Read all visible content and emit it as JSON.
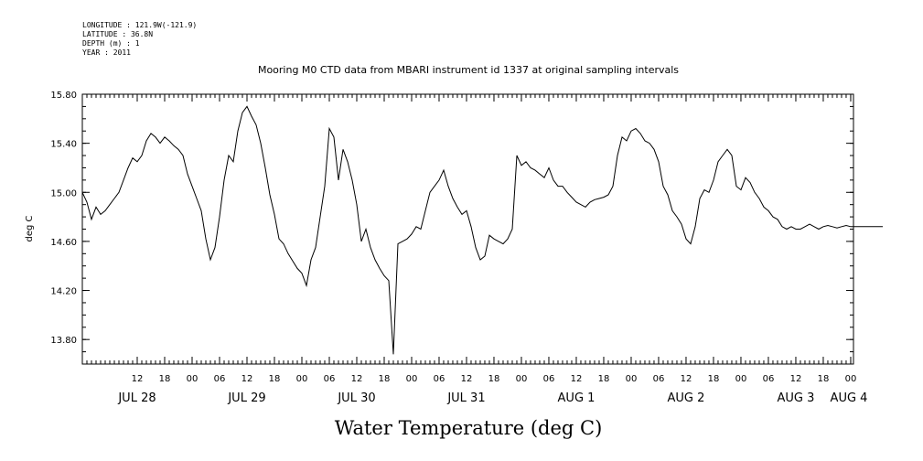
{
  "header": {
    "longitude": "LONGITUDE : 121.9W(-121.9)",
    "latitude": "LATITUDE : 36.8N",
    "depth": "DEPTH (m) : 1",
    "year": "YEAR : 2011"
  },
  "chart_data": {
    "type": "line",
    "title": "Mooring M0 CTD data from MBARI instrument id 1337 at original sampling intervals",
    "xlabel": "Water Temperature (deg C)",
    "ylabel": "deg C",
    "ylim": [
      13.6,
      15.8
    ],
    "y_ticks": [
      "15.80",
      "15.40",
      "15.00",
      "14.60",
      "14.20",
      "13.80"
    ],
    "y_tick_values": [
      15.8,
      15.4,
      15.0,
      14.6,
      14.2,
      13.8
    ],
    "xlim_hours": [
      0,
      168
    ],
    "hour_ticks": [
      "12",
      "18",
      "00",
      "06",
      "12",
      "18",
      "00",
      "06",
      "12",
      "18",
      "00",
      "06",
      "12",
      "18",
      "00",
      "06",
      "12",
      "18",
      "00",
      "06",
      "12",
      "18",
      "00",
      "06",
      "12",
      "18",
      "00",
      "06"
    ],
    "hour_tick_values": [
      12,
      18,
      24,
      30,
      36,
      42,
      48,
      54,
      60,
      66,
      72,
      78,
      84,
      90,
      96,
      102,
      108,
      114,
      120,
      126,
      132,
      138,
      144,
      150,
      156,
      162,
      168,
      174
    ],
    "day_labels": [
      "JUL 28",
      "JUL 29",
      "JUL 30",
      "JUL 31",
      "AUG  1",
      "AUG  2",
      "AUG  3",
      "AUG  4"
    ],
    "day_label_hours": [
      12,
      36,
      60,
      84,
      108,
      132,
      156,
      174
    ],
    "grid": false,
    "series": [
      {
        "x": [
          0,
          1,
          2,
          3,
          4,
          5,
          6,
          7,
          8,
          9,
          10,
          11,
          12,
          13,
          14,
          15,
          16,
          17,
          18,
          19,
          20,
          21,
          22,
          23,
          24,
          25,
          26,
          27,
          28,
          29,
          30,
          31,
          32,
          33,
          34,
          35,
          36,
          37,
          38,
          39,
          40,
          41,
          42,
          43,
          44,
          45,
          46,
          47,
          48,
          49,
          50,
          51,
          52,
          53,
          54,
          55,
          56,
          57,
          58,
          59,
          60,
          61,
          62,
          63,
          64,
          65,
          66,
          67,
          68,
          69,
          70,
          71,
          72,
          73,
          74,
          75,
          76,
          77,
          78,
          79,
          80,
          81,
          82,
          83,
          84,
          85,
          86,
          87,
          88,
          89,
          90,
          91,
          92,
          93,
          94,
          95,
          96,
          97,
          98,
          99,
          100,
          101,
          102,
          103,
          104,
          105,
          106,
          107,
          108,
          109,
          110,
          111,
          112,
          113,
          114,
          115,
          116,
          117,
          118,
          119,
          120,
          121,
          122,
          123,
          124,
          125,
          126,
          127,
          128,
          129,
          130,
          131,
          132,
          133,
          134,
          135,
          136,
          137,
          138,
          139,
          140,
          141,
          142,
          143,
          144,
          145,
          146,
          147,
          148,
          149,
          150,
          151,
          152,
          153,
          154,
          155,
          156,
          157,
          158,
          159,
          160,
          161,
          162,
          163,
          164,
          165,
          166,
          167,
          168,
          169,
          170,
          171,
          172,
          173,
          174,
          175
        ],
        "y": [
          15.0,
          14.92,
          14.78,
          14.88,
          14.82,
          14.85,
          14.9,
          14.95,
          15.0,
          15.1,
          15.2,
          15.28,
          15.25,
          15.3,
          15.42,
          15.48,
          15.45,
          15.4,
          15.45,
          15.42,
          15.38,
          15.35,
          15.3,
          15.15,
          15.05,
          14.95,
          14.85,
          14.62,
          14.45,
          14.55,
          14.8,
          15.1,
          15.3,
          15.25,
          15.5,
          15.65,
          15.7,
          15.62,
          15.55,
          15.4,
          15.2,
          14.98,
          14.82,
          14.62,
          14.58,
          14.5,
          14.44,
          14.38,
          14.34,
          14.24,
          14.45,
          14.55,
          14.8,
          15.05,
          15.52,
          15.45,
          15.1,
          15.35,
          15.25,
          15.1,
          14.9,
          14.6,
          14.7,
          14.55,
          14.45,
          14.38,
          14.32,
          14.28,
          13.68,
          14.58,
          14.6,
          14.62,
          14.66,
          14.72,
          14.7,
          14.85,
          15.0,
          15.05,
          15.1,
          15.18,
          15.05,
          14.95,
          14.88,
          14.82,
          14.85,
          14.72,
          14.55,
          14.45,
          14.48,
          14.65,
          14.62,
          14.6,
          14.58,
          14.62,
          14.7,
          15.3,
          15.22,
          15.25,
          15.2,
          15.18,
          15.15,
          15.12,
          15.2,
          15.1,
          15.05,
          15.05,
          15.0,
          14.96,
          14.92,
          14.9,
          14.88,
          14.92,
          14.94,
          14.95,
          14.96,
          14.98,
          15.05,
          15.3,
          15.45,
          15.42,
          15.5,
          15.52,
          15.48,
          15.42,
          15.4,
          15.35,
          15.25,
          15.05,
          14.98,
          14.85,
          14.8,
          14.74,
          14.62,
          14.58,
          14.72,
          14.95,
          15.02,
          15.0,
          15.1,
          15.25,
          15.3,
          15.35,
          15.3,
          15.05,
          15.02,
          15.12,
          15.08,
          15.0,
          14.95,
          14.88,
          14.85,
          14.8,
          14.78,
          14.72,
          14.7,
          14.72,
          14.7,
          14.7,
          14.72,
          14.74,
          14.72,
          14.7,
          14.72,
          14.73,
          14.72,
          14.71,
          14.72,
          14.73,
          14.72,
          14.72,
          14.72,
          14.72,
          14.72,
          14.72,
          14.72,
          14.72
        ]
      }
    ]
  }
}
